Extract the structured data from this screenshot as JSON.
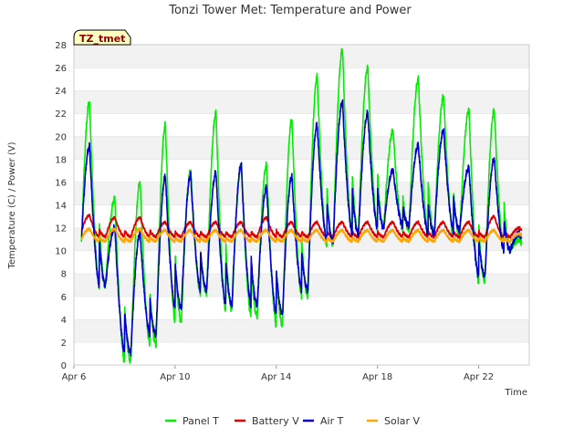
{
  "chart_data": {
    "type": "line",
    "title": "Tonzi Tower Met: Temperature and Power",
    "xlabel": "Time",
    "ylabel": "Temperature (C) / Power (V)",
    "badge": "TZ_tmet",
    "ylim": [
      0,
      28
    ],
    "yticks": [
      "0",
      "2",
      "4",
      "6",
      "8",
      "10",
      "12",
      "14",
      "16",
      "18",
      "20",
      "22",
      "24",
      "26",
      "28"
    ],
    "xlim": [
      "2024-04-06",
      "2024-04-24"
    ],
    "xticks": [
      {
        "label": "Apr 6",
        "x": "2024-04-06"
      },
      {
        "label": "Apr 10",
        "x": "2024-04-10"
      },
      {
        "label": "Apr 14",
        "x": "2024-04-14"
      },
      {
        "label": "Apr 18",
        "x": "2024-04-18"
      },
      {
        "label": "Apr 22",
        "x": "2024-04-22"
      }
    ],
    "grid": true,
    "legend_position": "bottom",
    "days": [
      "Apr 6",
      "Apr 7",
      "Apr 8",
      "Apr 9",
      "Apr 10",
      "Apr 11",
      "Apr 12",
      "Apr 13",
      "Apr 14",
      "Apr 15",
      "Apr 16",
      "Apr 17",
      "Apr 18",
      "Apr 19",
      "Apr 20",
      "Apr 21",
      "Apr 22",
      "Apr 23"
    ],
    "series": [
      {
        "name": "Panel T",
        "color": "#00ee00",
        "daily_min": [
          7.5,
          7.0,
          0.3,
          1.8,
          3.8,
          6.3,
          4.8,
          4.3,
          3.5,
          6.0,
          10.5,
          11.5,
          12.0,
          11.8,
          11.5,
          11.2,
          7.3,
          10.0
        ],
        "daily_max": [
          23.0,
          14.5,
          16.0,
          21.0,
          17.0,
          22.0,
          17.5,
          17.5,
          21.5,
          25.2,
          27.6,
          26.0,
          20.5,
          25.0,
          23.5,
          22.3,
          22.3,
          11.0
        ]
      },
      {
        "name": "Battery V",
        "color": "#dd0000",
        "daily_min": [
          11.3,
          11.2,
          11.2,
          11.2,
          11.2,
          11.2,
          11.2,
          11.2,
          11.2,
          11.2,
          11.2,
          11.2,
          11.2,
          11.2,
          11.2,
          11.2,
          11.2,
          11.2
        ],
        "daily_max": [
          13.1,
          12.9,
          12.9,
          12.5,
          12.5,
          12.5,
          12.5,
          12.9,
          12.5,
          12.5,
          12.5,
          12.5,
          12.5,
          12.5,
          12.5,
          12.5,
          13.0,
          12.0
        ]
      },
      {
        "name": "Air T",
        "color": "#0000cc",
        "daily_min": [
          8.8,
          7.0,
          1.1,
          2.7,
          5.0,
          6.6,
          5.3,
          5.3,
          4.5,
          6.6,
          10.8,
          11.5,
          12.0,
          12.2,
          11.5,
          11.8,
          7.8,
          10.0
        ],
        "daily_max": [
          19.1,
          12.0,
          11.5,
          16.5,
          16.6,
          16.8,
          17.5,
          15.5,
          16.5,
          21.0,
          23.0,
          22.0,
          17.0,
          19.2,
          20.5,
          17.2,
          18.0,
          11.5
        ]
      },
      {
        "name": "Solar V",
        "color": "#ffa500",
        "daily_min": [
          10.8,
          10.8,
          10.8,
          10.8,
          10.8,
          10.8,
          10.8,
          10.8,
          10.8,
          10.8,
          10.8,
          10.8,
          10.8,
          10.8,
          10.8,
          10.8,
          10.8,
          10.8
        ],
        "daily_max": [
          11.9,
          11.9,
          11.9,
          11.8,
          11.8,
          11.8,
          11.8,
          11.8,
          11.8,
          11.8,
          11.8,
          11.8,
          11.8,
          11.8,
          11.8,
          11.8,
          11.8,
          11.5
        ]
      }
    ]
  }
}
